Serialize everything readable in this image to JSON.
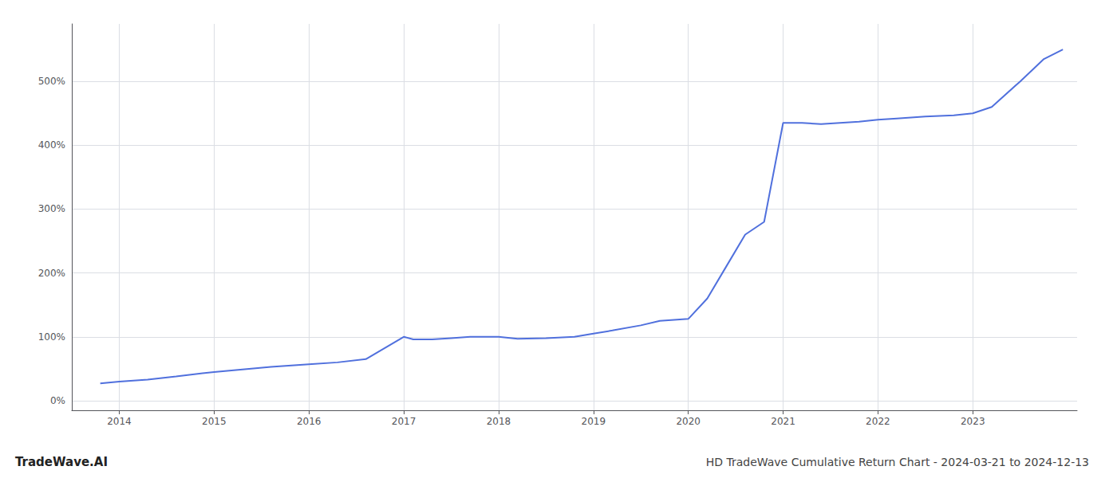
{
  "chart_data": {
    "type": "line",
    "title": "HD TradeWave Cumulative Return Chart - 2024-03-21 to 2024-12-13",
    "watermark": "TradeWave.AI",
    "x": [
      2013.8,
      2014.0,
      2014.3,
      2014.6,
      2015.0,
      2015.3,
      2015.6,
      2016.0,
      2016.3,
      2016.6,
      2017.0,
      2017.1,
      2017.3,
      2017.5,
      2017.7,
      2018.0,
      2018.2,
      2018.5,
      2018.8,
      2019.0,
      2019.2,
      2019.5,
      2019.7,
      2020.0,
      2020.2,
      2020.4,
      2020.6,
      2020.8,
      2021.0,
      2021.2,
      2021.4,
      2021.6,
      2021.8,
      2022.0,
      2022.2,
      2022.5,
      2022.8,
      2023.0,
      2023.2,
      2023.5,
      2023.75,
      2023.95
    ],
    "values": [
      27,
      30,
      33,
      38,
      45,
      49,
      53,
      57,
      60,
      65,
      100,
      96,
      96,
      98,
      100,
      100,
      97,
      98,
      100,
      105,
      110,
      118,
      125,
      128,
      160,
      210,
      260,
      280,
      435,
      435,
      433,
      435,
      437,
      440,
      442,
      445,
      447,
      450,
      460,
      500,
      535,
      550
    ],
    "xlim": [
      2013.5,
      2024.1
    ],
    "xticks": [
      2014,
      2015,
      2016,
      2017,
      2018,
      2019,
      2020,
      2021,
      2022,
      2023
    ],
    "ylim": [
      -15,
      590
    ],
    "yticks": [
      {
        "value": 0,
        "label": "0%"
      },
      {
        "value": 100,
        "label": "100%"
      },
      {
        "value": 200,
        "label": "200%"
      },
      {
        "value": 300,
        "label": "300%"
      },
      {
        "value": 400,
        "label": "400%"
      },
      {
        "value": 500,
        "label": "500%"
      }
    ],
    "grid": true
  }
}
